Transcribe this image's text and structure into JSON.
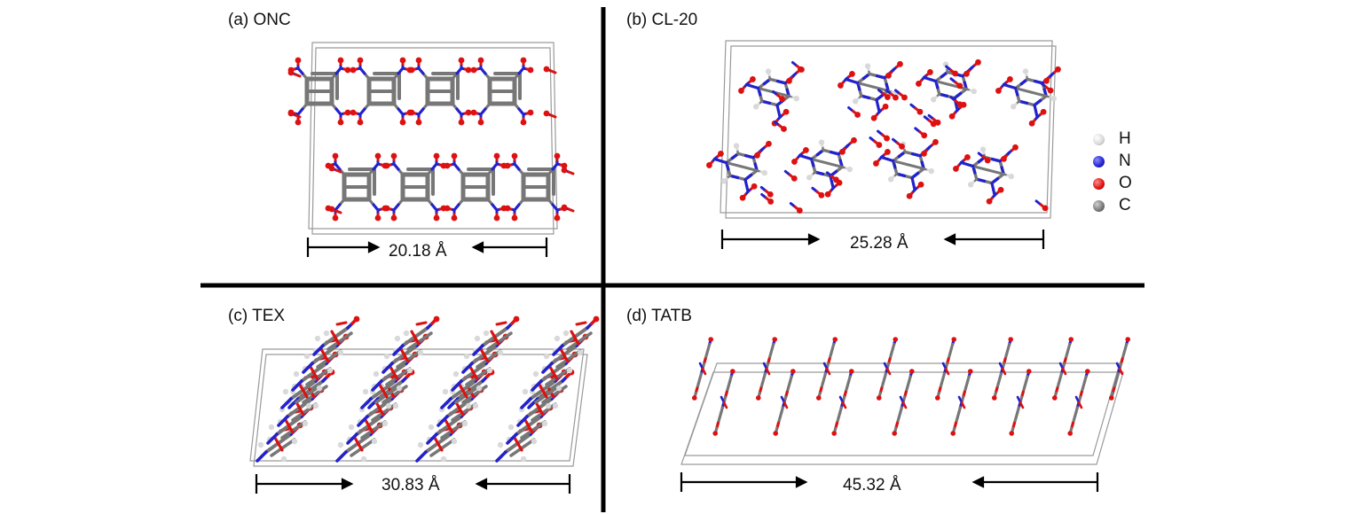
{
  "panels": [
    {
      "id": "a",
      "label": "(a) ONC",
      "dimension": "20.18 Å"
    },
    {
      "id": "b",
      "label": "(b) CL-20",
      "dimension": "25.28 Å"
    },
    {
      "id": "c",
      "label": "(c) TEX",
      "dimension": "30.83 Å"
    },
    {
      "id": "d",
      "label": "(d) TATB",
      "dimension": "45.32 Å"
    }
  ],
  "legend": [
    {
      "symbol": "H",
      "color": "#d9d9d9"
    },
    {
      "symbol": "N",
      "color": "#2222cc"
    },
    {
      "symbol": "O",
      "color": "#dd1111"
    },
    {
      "symbol": "C",
      "color": "#777777"
    }
  ],
  "colors": {
    "divider": "#000000",
    "hydrogen": "#d9d9d9",
    "nitrogen": "#2222cc",
    "oxygen": "#dd1111",
    "carbon": "#777777",
    "cell_edge": "#9a9a9a"
  }
}
